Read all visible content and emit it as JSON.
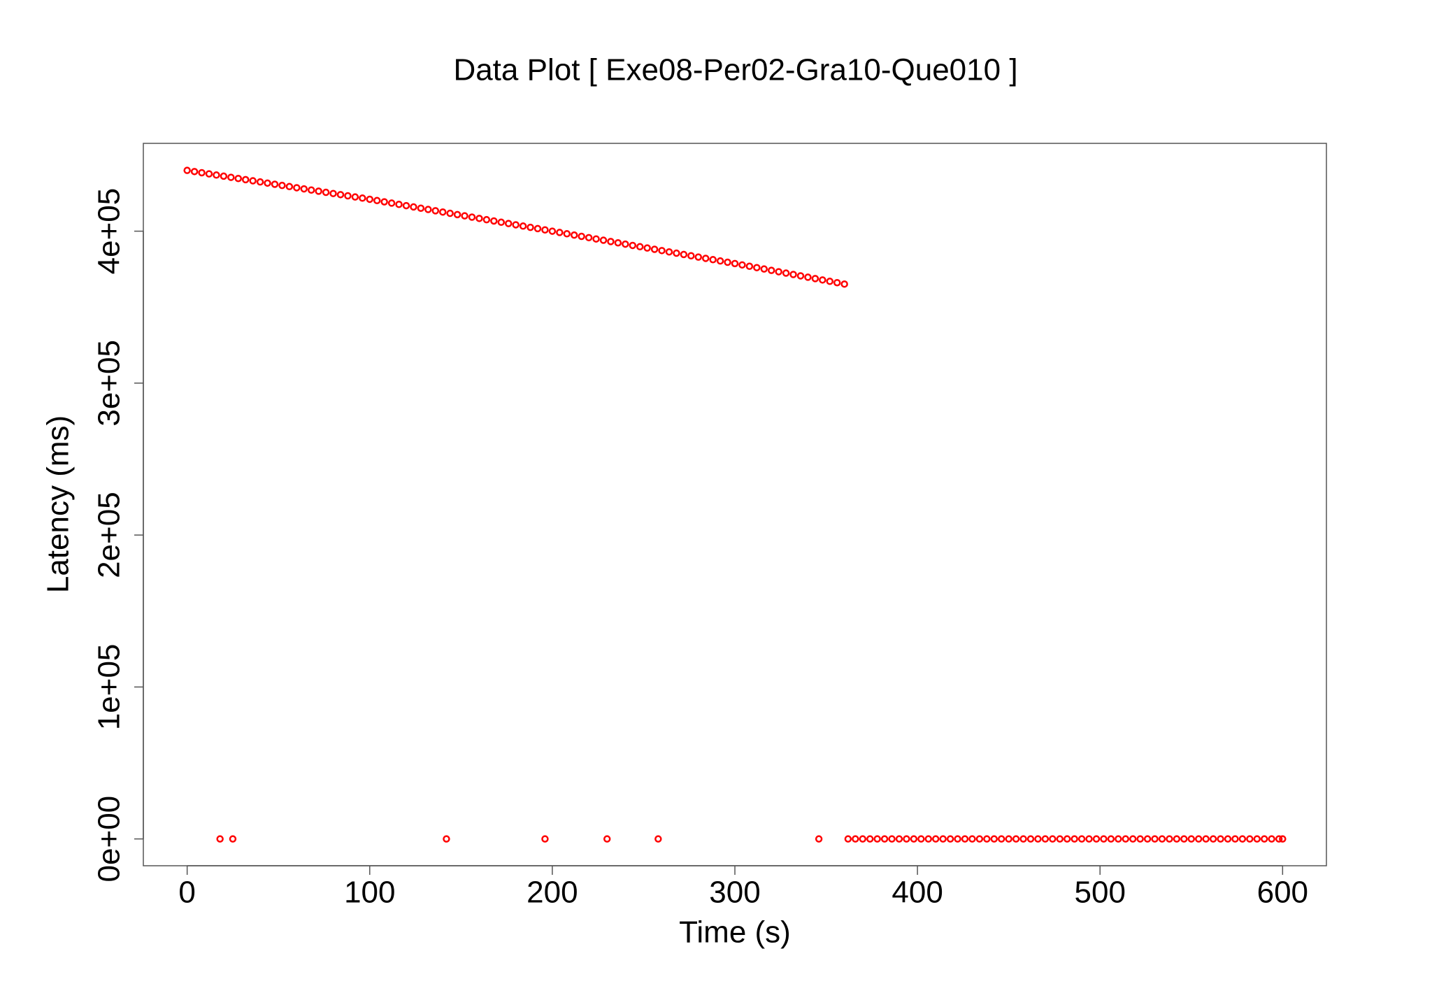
{
  "chart_data": {
    "type": "scatter",
    "title": "Data Plot [ Exe08-Per02-Gra10-Que010 ]",
    "x_label": "Time (s)",
    "y_label": "Latency (ms)",
    "xlim": [
      -24,
      624
    ],
    "ylim": [
      -17650,
      457800
    ],
    "xticks": [
      0,
      100,
      200,
      300,
      400,
      500,
      600
    ],
    "yticks": [
      {
        "value": 0,
        "label": "0e+00"
      },
      {
        "value": 100000,
        "label": "1e+05"
      },
      {
        "value": 200000,
        "label": "2e+05"
      },
      {
        "value": 300000,
        "label": "3e+05"
      },
      {
        "value": 400000,
        "label": "4e+05"
      }
    ],
    "series": [
      {
        "color": "#ff0000",
        "x": [
          0,
          4,
          8,
          12,
          16,
          20,
          24,
          28,
          32,
          36,
          40,
          44,
          48,
          52,
          56,
          60,
          64,
          68,
          72,
          76,
          80,
          84,
          88,
          92,
          96,
          100,
          104,
          108,
          112,
          116,
          120,
          124,
          128,
          132,
          136,
          140,
          144,
          148,
          152,
          156,
          160,
          164,
          168,
          172,
          176,
          180,
          184,
          188,
          192,
          196,
          200,
          204,
          208,
          212,
          216,
          220,
          224,
          228,
          232,
          236,
          240,
          244,
          248,
          252,
          256,
          260,
          264,
          268,
          272,
          276,
          280,
          284,
          288,
          292,
          296,
          300,
          304,
          308,
          312,
          316,
          320,
          324,
          328,
          332,
          336,
          340,
          344,
          348,
          352,
          356,
          360
        ],
        "values": [
          440000,
          439240,
          438480,
          437720,
          436960,
          436200,
          435440,
          434680,
          433920,
          433160,
          432400,
          431640,
          430880,
          430120,
          429360,
          428600,
          427840,
          427080,
          426320,
          425560,
          424800,
          424040,
          423280,
          422520,
          421760,
          421000,
          420160,
          419320,
          418480,
          417640,
          416800,
          415960,
          415120,
          414280,
          413440,
          412600,
          411760,
          410920,
          410080,
          409240,
          408400,
          407560,
          406720,
          405880,
          405040,
          404200,
          403360,
          402520,
          401680,
          400840,
          400000,
          399148,
          398296,
          397444,
          396592,
          395740,
          394888,
          394036,
          393184,
          392332,
          391480,
          390628,
          389776,
          388924,
          388072,
          387220,
          386368,
          385516,
          384664,
          383812,
          382960,
          382108,
          381256,
          380404,
          379552,
          378700,
          377800,
          376900,
          376000,
          375100,
          374200,
          373300,
          372400,
          371500,
          370600,
          369700,
          368800,
          367900,
          367000,
          366100,
          365200
        ]
      },
      {
        "color": "#ff0000",
        "x": [
          18,
          25,
          142,
          196,
          230,
          258,
          346,
          362,
          366,
          370,
          374,
          378,
          382,
          386,
          390,
          394,
          398,
          402,
          406,
          410,
          414,
          418,
          422,
          426,
          430,
          434,
          438,
          442,
          446,
          450,
          454,
          458,
          462,
          466,
          470,
          474,
          478,
          482,
          486,
          490,
          494,
          498,
          502,
          506,
          510,
          514,
          518,
          522,
          526,
          530,
          534,
          538,
          542,
          546,
          550,
          554,
          558,
          562,
          566,
          570,
          574,
          578,
          582,
          586,
          590,
          594,
          598,
          600
        ],
        "values": [
          0,
          0,
          0,
          0,
          0,
          0,
          0,
          0,
          0,
          0,
          0,
          0,
          0,
          0,
          0,
          0,
          0,
          0,
          0,
          0,
          0,
          0,
          0,
          0,
          0,
          0,
          0,
          0,
          0,
          0,
          0,
          0,
          0,
          0,
          0,
          0,
          0,
          0,
          0,
          0,
          0,
          0,
          0,
          0,
          0,
          0,
          0,
          0,
          0,
          0,
          0,
          0,
          0,
          0,
          0,
          0,
          0,
          0,
          0,
          0,
          0,
          0,
          0,
          0,
          0,
          0,
          0,
          0
        ]
      }
    ]
  }
}
